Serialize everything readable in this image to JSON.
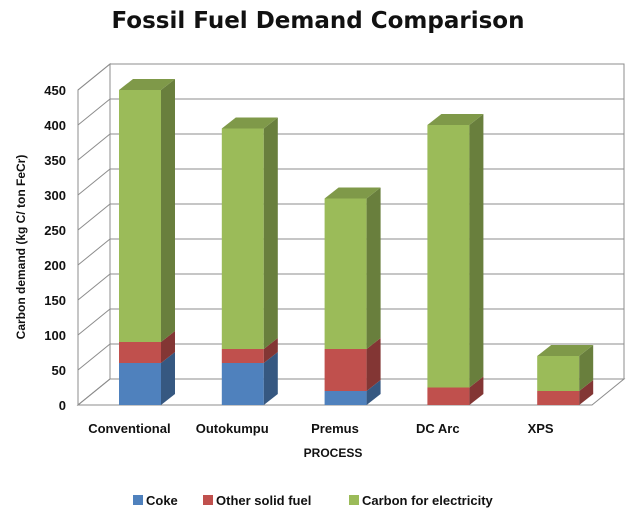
{
  "chart_data": {
    "type": "bar",
    "stacked": true,
    "style": "3d-column",
    "title": "Fossil Fuel Demand Comparison",
    "xlabel": "PROCESS",
    "ylabel": "Carbon demand (kg C/ ton FeCr)",
    "ylim": [
      0,
      450
    ],
    "yticks": [
      "0",
      "50",
      "100",
      "150",
      "200",
      "250",
      "300",
      "350",
      "400",
      "450"
    ],
    "grid": true,
    "legend_position": "bottom",
    "categories": [
      "Conventional",
      "Outokumpu",
      "Premus",
      "DC Arc",
      "XPS"
    ],
    "series": [
      {
        "name": "Coke",
        "color": "#4f81bd",
        "values": [
          60,
          60,
          20,
          0,
          0
        ]
      },
      {
        "name": "Other  solid fuel",
        "color": "#c0504d",
        "values": [
          30,
          20,
          60,
          25,
          20
        ]
      },
      {
        "name": "Carbon for electricity",
        "color": "#9bbb59",
        "values": [
          360,
          315,
          215,
          375,
          50
        ]
      }
    ]
  }
}
